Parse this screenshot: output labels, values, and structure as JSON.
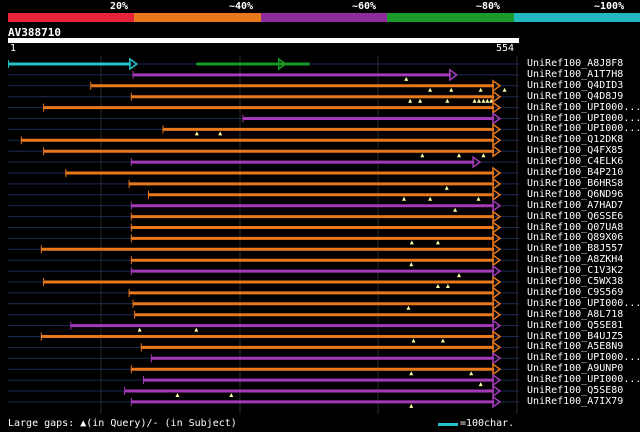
{
  "scale": {
    "labels": [
      "20%",
      "~40%",
      "~60%",
      "~80%",
      "~100%"
    ],
    "colors": [
      "#e5233a",
      "#e8781c",
      "#8e2c9c",
      "#1a9a2a",
      "#22b8bf"
    ]
  },
  "query": {
    "name": "AV388710",
    "start": "1",
    "end": "554",
    "length": 554
  },
  "hits": [
    {
      "id": "UniRef100_A8J8F8",
      "color": "#22c3c9",
      "start": 1,
      "end": 232,
      "end2": 554,
      "color2": "#169a24",
      "seg2start": 339,
      "marks": [],
      "dash": [
        105,
        339
      ]
    },
    {
      "id": "UniRef100_A1T7H8",
      "color": "#a53ab8",
      "start": 225,
      "end": 808,
      "marks": [
        717
      ],
      "dash": []
    },
    {
      "id": "UniRef100_Q4DID3",
      "color": "#e8781c",
      "start": 149,
      "end": 920,
      "marks": [
        760,
        798,
        851,
        894
      ],
      "dash": []
    },
    {
      "id": "UniRef100_Q4D8J9",
      "color": "#e8781c",
      "start": 222,
      "end": 910,
      "marks": [
        724,
        742,
        791,
        840,
        848,
        856,
        863,
        870
      ],
      "dash": []
    },
    {
      "id": "UniRef100_UPI000...",
      "color": "#e8781c",
      "start": 64,
      "end": 910,
      "marks": [],
      "dash": []
    },
    {
      "id": "UniRef100_UPI000...",
      "color": "#a53ab8",
      "start": 423,
      "end": 920,
      "marks": [],
      "dash": []
    },
    {
      "id": "UniRef100_UPI000...",
      "color": "#e8781c",
      "start": 279,
      "end": 920,
      "marks": [
        340,
        382
      ],
      "dash": []
    },
    {
      "id": "UniRef100_Q12DK8",
      "color": "#e8781c",
      "start": 24,
      "end": 920,
      "marks": [],
      "dash": []
    },
    {
      "id": "UniRef100_Q4FX85",
      "color": "#e8781c",
      "start": 64,
      "end": 920,
      "marks": [
        746,
        812,
        856
      ],
      "dash": []
    },
    {
      "id": "UniRef100_C4ELK6",
      "color": "#a53ab8",
      "start": 222,
      "end": 850,
      "marks": [],
      "dash": []
    },
    {
      "id": "UniRef100_B4P210",
      "color": "#e8781c",
      "start": 104,
      "end": 920,
      "marks": [],
      "dash": []
    },
    {
      "id": "UniRef100_B6HRS8",
      "color": "#e8781c",
      "start": 218,
      "end": 920,
      "marks": [
        790
      ],
      "dash": []
    },
    {
      "id": "UniRef100_Q6ND96",
      "color": "#e8781c",
      "start": 253,
      "end": 920,
      "marks": [
        713,
        760,
        847
      ],
      "dash": []
    },
    {
      "id": "UniRef100_A7HAD7",
      "color": "#a53ab8",
      "start": 222,
      "end": 910,
      "marks": [
        805
      ],
      "dash": []
    },
    {
      "id": "UniRef100_Q6SSE6",
      "color": "#e8781c",
      "start": 222,
      "end": 920,
      "marks": [],
      "dash": []
    },
    {
      "id": "UniRef100_Q07UA8",
      "color": "#e8781c",
      "start": 222,
      "end": 920,
      "marks": [],
      "dash": []
    },
    {
      "id": "UniRef100_Q89X06",
      "color": "#e8781c",
      "start": 222,
      "end": 920,
      "marks": [
        727,
        774
      ],
      "dash": []
    },
    {
      "id": "UniRef100_B8J557",
      "color": "#e8781c",
      "start": 60,
      "end": 920,
      "marks": [],
      "dash": []
    },
    {
      "id": "UniRef100_A8ZKH4",
      "color": "#e8781c",
      "start": 222,
      "end": 920,
      "marks": [
        726
      ],
      "dash": []
    },
    {
      "id": "UniRef100_C1V3K2",
      "color": "#a53ab8",
      "start": 222,
      "end": 920,
      "marks": [
        812
      ],
      "dash": []
    },
    {
      "id": "UniRef100_C5WX38",
      "color": "#e8781c",
      "start": 64,
      "end": 920,
      "marks": [
        774,
        792
      ],
      "dash": []
    },
    {
      "id": "UniRef100_C9S569",
      "color": "#e8781c",
      "start": 218,
      "end": 920,
      "marks": [],
      "dash": []
    },
    {
      "id": "UniRef100_UPI000...",
      "color": "#e8781c",
      "start": 225,
      "end": 890,
      "marks": [
        721
      ],
      "dash": []
    },
    {
      "id": "UniRef100_A8L718",
      "color": "#e8781c",
      "start": 228,
      "end": 920,
      "marks": [],
      "dash": []
    },
    {
      "id": "UniRef100_Q5SE81",
      "color": "#a53ab8",
      "start": 113,
      "end": 910,
      "marks": [
        237,
        339
      ],
      "dash": []
    },
    {
      "id": "UniRef100_B4UJZ5",
      "color": "#e8781c",
      "start": 60,
      "end": 920,
      "marks": [
        730,
        783
      ],
      "dash": []
    },
    {
      "id": "UniRef100_A5E8N9",
      "color": "#e8781c",
      "start": 240,
      "end": 920,
      "marks": [],
      "dash": []
    },
    {
      "id": "UniRef100_UPI000...",
      "color": "#a53ab8",
      "start": 258,
      "end": 920,
      "marks": [],
      "dash": []
    },
    {
      "id": "UniRef100_A9UNP0",
      "color": "#e8781c",
      "start": 222,
      "end": 920,
      "marks": [
        726,
        834
      ],
      "dash": []
    },
    {
      "id": "UniRef100_UPI000...",
      "color": "#a53ab8",
      "start": 244,
      "end": 920,
      "marks": [
        851
      ],
      "dash": []
    },
    {
      "id": "UniRef100_Q5SE80",
      "color": "#a53ab8",
      "start": 210,
      "end": 920,
      "marks": [
        305,
        402
      ],
      "dash": []
    },
    {
      "id": "UniRef100_A7IX79",
      "color": "#a53ab8",
      "start": 222,
      "end": 910,
      "marks": [
        726
      ],
      "dash": []
    }
  ],
  "footer": {
    "legend": "Large gaps: ▲(in Query)/- (in Subject)",
    "scale_text": "=100char."
  }
}
